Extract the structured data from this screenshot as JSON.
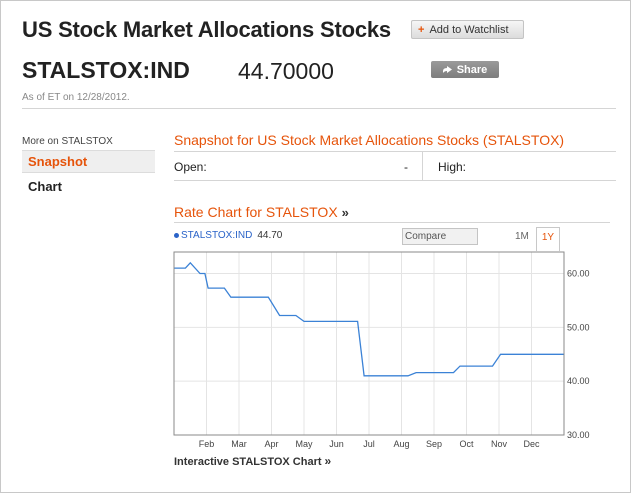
{
  "header": {
    "title": "US Stock Market Allocations Stocks",
    "watchlist_label": "Add to Watchlist",
    "watchlist_icon": "+",
    "ticker": "STALSTOX:IND",
    "price": "44.70000",
    "share_label": "Share",
    "as_of": "As of ET on 12/28/2012."
  },
  "sidebar": {
    "heading": "More on STALSTOX",
    "items": [
      {
        "label": "Snapshot"
      },
      {
        "label": "Chart"
      }
    ]
  },
  "snapshot": {
    "heading": "Snapshot for US Stock Market Allocations Stocks (STALSTOX)",
    "open_label": "Open:",
    "open_value": "-",
    "high_label": "High:"
  },
  "rate_chart": {
    "heading": "Rate Chart for STALSTOX",
    "heading_icon": "»",
    "legend_ticker": "STALSTOX:IND",
    "legend_value": "44.70",
    "compare_placeholder": "Compare",
    "range_1m": "1M",
    "range_1y": "1Y",
    "interactive_link": "Interactive STALSTOX Chart",
    "interactive_icon": "»"
  },
  "colors": {
    "accent": "#e6540b",
    "line": "#3b82d6"
  },
  "chart_data": {
    "type": "line",
    "title": "",
    "xlabel": "",
    "ylabel": "",
    "x_ticks": [
      "Feb",
      "Mar",
      "Apr",
      "May",
      "Jun",
      "Jul",
      "Aug",
      "Sep",
      "Oct",
      "Nov",
      "Dec"
    ],
    "y_ticks": [
      "60.00",
      "50.00",
      "40.00",
      "30.00"
    ],
    "ylim": [
      30,
      64
    ],
    "xlim": [
      0,
      12
    ],
    "grid": true,
    "series": [
      {
        "name": "STALSTOX:IND",
        "points": [
          [
            0.0,
            61.0
          ],
          [
            0.35,
            61.0
          ],
          [
            0.5,
            62.0
          ],
          [
            0.8,
            60.0
          ],
          [
            0.95,
            60.0
          ],
          [
            1.05,
            57.3
          ],
          [
            1.55,
            57.3
          ],
          [
            1.75,
            55.6
          ],
          [
            2.9,
            55.6
          ],
          [
            3.25,
            52.2
          ],
          [
            3.75,
            52.2
          ],
          [
            4.0,
            51.1
          ],
          [
            5.65,
            51.1
          ],
          [
            5.85,
            41.0
          ],
          [
            7.2,
            41.0
          ],
          [
            7.45,
            41.6
          ],
          [
            8.6,
            41.6
          ],
          [
            8.8,
            42.8
          ],
          [
            9.8,
            42.8
          ],
          [
            10.05,
            45.0
          ],
          [
            12.0,
            45.0
          ]
        ]
      }
    ]
  }
}
